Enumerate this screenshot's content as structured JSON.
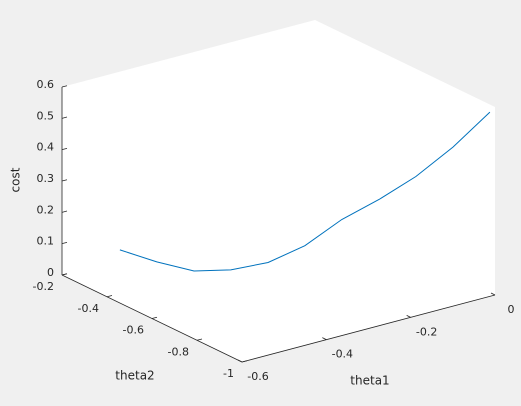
{
  "chart_data": {
    "type": "line3d",
    "xlabel": "theta1",
    "ylabel": "theta2",
    "zlabel": "cost",
    "xlim": [
      -0.6,
      0
    ],
    "ylim": [
      -1,
      -0.2
    ],
    "zlim": [
      0,
      0.6
    ],
    "xticks": [
      -0.6,
      -0.4,
      -0.2,
      0
    ],
    "yticks": [
      -1,
      -0.8,
      -0.6,
      -0.4,
      -0.2
    ],
    "zticks": [
      0,
      0.1,
      0.2,
      0.3,
      0.4,
      0.5,
      0.6
    ],
    "color": "#0072bd",
    "x": [
      -0.516,
      -0.466,
      -0.415,
      -0.365,
      -0.314,
      -0.264,
      -0.214,
      -0.163,
      -0.113,
      -0.062,
      -0.012
    ],
    "y": [
      -0.3,
      -0.37,
      -0.44,
      -0.51,
      -0.58,
      -0.65,
      -0.72,
      -0.79,
      -0.86,
      -0.93,
      -1.0
    ],
    "z": [
      0.085,
      0.053,
      0.03,
      0.04,
      0.07,
      0.13,
      0.22,
      0.29,
      0.37,
      0.47,
      0.588
    ]
  }
}
